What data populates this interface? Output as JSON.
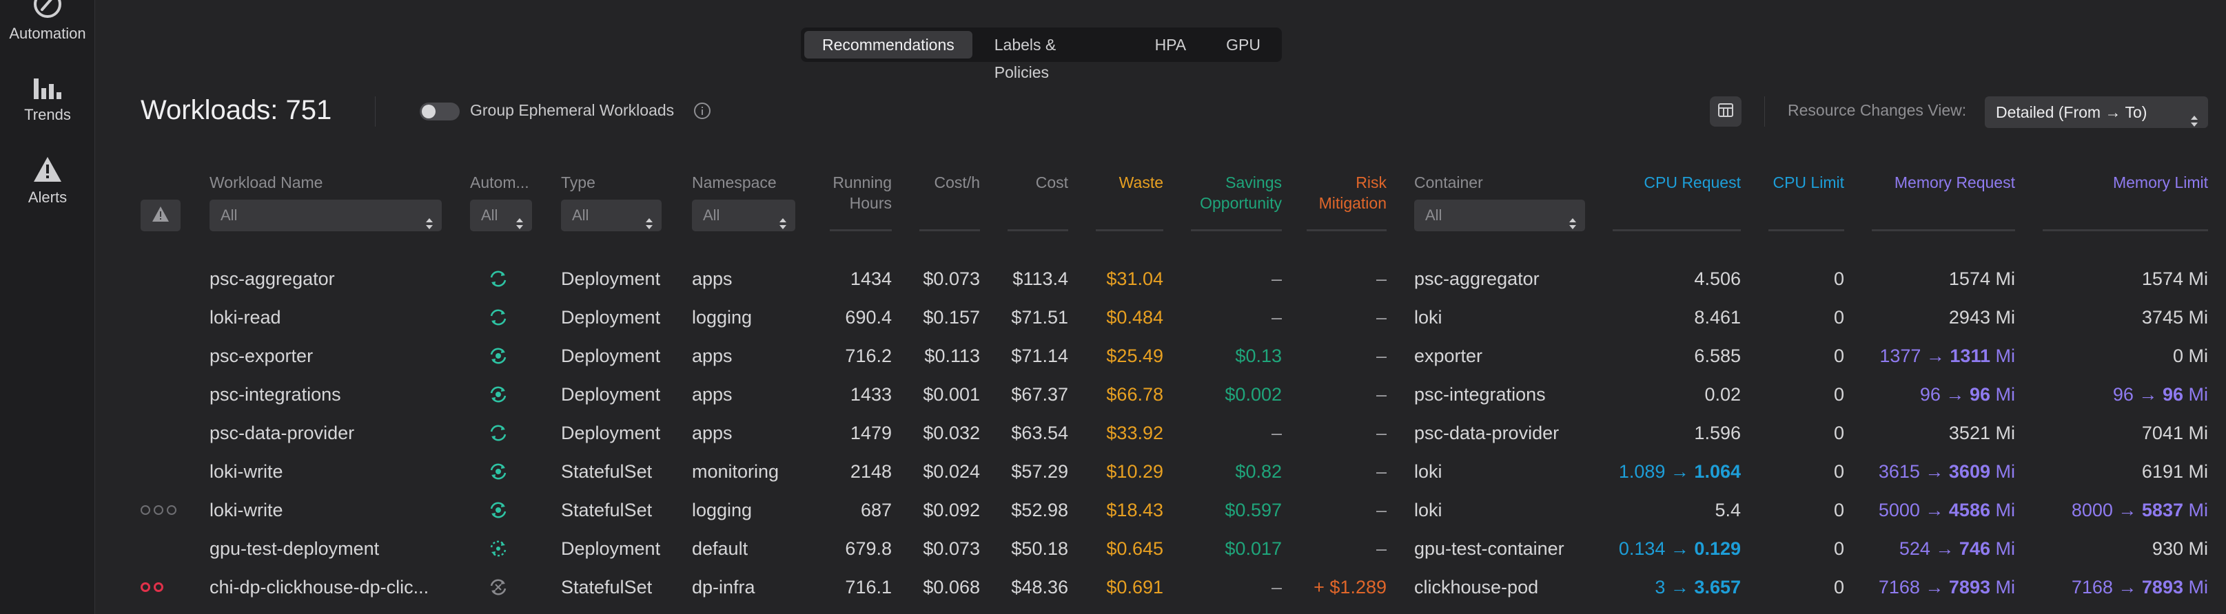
{
  "sidebar": {
    "items": [
      {
        "label": "Automation",
        "icon": "automation-icon"
      },
      {
        "label": "Trends",
        "icon": "trends-icon"
      },
      {
        "label": "Alerts",
        "icon": "alerts-icon"
      }
    ]
  },
  "tabs": [
    "Recommendations",
    "Labels & Policies",
    "HPA",
    "GPU"
  ],
  "active_tab": "Recommendations",
  "header": {
    "title": "Workloads: 751",
    "toggle_label": "Group Ephemeral Workloads",
    "resource_view_label": "Resource Changes View:",
    "resource_view_value": "Detailed (From → To)"
  },
  "columns": {
    "workload_name": "Workload Name",
    "automation": "Autom...",
    "type": "Type",
    "namespace": "Namespace",
    "running_hours": [
      "Running",
      "Hours"
    ],
    "cost_h": "Cost/h",
    "cost": "Cost",
    "waste": "Waste",
    "savings": [
      "Savings",
      "Opportunity"
    ],
    "risk": [
      "Risk",
      "Mitigation"
    ],
    "container": "Container",
    "cpu_request": "CPU Request",
    "cpu_limit": "CPU Limit",
    "memory_request": "Memory Request",
    "memory_limit": "Memory Limit"
  },
  "filters": {
    "workload_name": "All",
    "automation": "All",
    "type": "All",
    "namespace": "All",
    "container": "All"
  },
  "colors": {
    "waste": "#e8a021",
    "savings": "#1fa57b",
    "risk": "#e0662a",
    "cpu": "#1d9ed8",
    "memory": "#8f7bf0",
    "alert_dot": "#e0314a"
  },
  "rows": [
    {
      "name": "psc-aggregator",
      "auto_icon": "sync-icon",
      "type": "Deployment",
      "namespace": "apps",
      "hours": "1434",
      "cost_h": "$0.073",
      "cost": "$113.4",
      "waste": "$31.04",
      "savings": "–",
      "risk": "–",
      "container": "psc-aggregator",
      "cpu_req_from": "",
      "cpu_req": "4.506",
      "cpu_limit": "0",
      "mem_req_from": "",
      "mem_req": "1574",
      "mem_lim_from": "",
      "mem_lim": "1574",
      "unit": "Mi",
      "indicator": ""
    },
    {
      "name": "loki-read",
      "auto_icon": "sync-icon",
      "type": "Deployment",
      "namespace": "logging",
      "hours": "690.4",
      "cost_h": "$0.157",
      "cost": "$71.51",
      "waste": "$0.484",
      "savings": "–",
      "risk": "–",
      "container": "loki",
      "cpu_req_from": "",
      "cpu_req": "8.461",
      "cpu_limit": "0",
      "mem_req_from": "",
      "mem_req": "2943",
      "mem_lim_from": "",
      "mem_lim": "3745",
      "unit": "Mi",
      "indicator": ""
    },
    {
      "name": "psc-exporter",
      "auto_icon": "sync-gear-icon",
      "type": "Deployment",
      "namespace": "apps",
      "hours": "716.2",
      "cost_h": "$0.113",
      "cost": "$71.14",
      "waste": "$25.49",
      "savings": "$0.13",
      "risk": "–",
      "container": "exporter",
      "cpu_req_from": "",
      "cpu_req": "6.585",
      "cpu_limit": "0",
      "mem_req_from": "1377",
      "mem_req": "1311",
      "mem_lim_from": "",
      "mem_lim": "0",
      "unit": "Mi",
      "indicator": ""
    },
    {
      "name": "psc-integrations",
      "auto_icon": "sync-gear-icon",
      "type": "Deployment",
      "namespace": "apps",
      "hours": "1433",
      "cost_h": "$0.001",
      "cost": "$67.37",
      "waste": "$66.78",
      "savings": "$0.002",
      "risk": "–",
      "container": "psc-integrations",
      "cpu_req_from": "",
      "cpu_req": "0.02",
      "cpu_limit": "0",
      "mem_req_from": "96",
      "mem_req": "96",
      "mem_lim_from": "96",
      "mem_lim": "96",
      "unit": "Mi",
      "indicator": ""
    },
    {
      "name": "psc-data-provider",
      "auto_icon": "sync-icon",
      "type": "Deployment",
      "namespace": "apps",
      "hours": "1479",
      "cost_h": "$0.032",
      "cost": "$63.54",
      "waste": "$33.92",
      "savings": "–",
      "risk": "–",
      "container": "psc-data-provider",
      "cpu_req_from": "",
      "cpu_req": "1.596",
      "cpu_limit": "0",
      "mem_req_from": "",
      "mem_req": "3521",
      "mem_lim_from": "",
      "mem_lim": "7041",
      "unit": "Mi",
      "indicator": ""
    },
    {
      "name": "loki-write",
      "auto_icon": "sync-gear-icon",
      "type": "StatefulSet",
      "namespace": "monitoring",
      "hours": "2148",
      "cost_h": "$0.024",
      "cost": "$57.29",
      "waste": "$10.29",
      "savings": "$0.82",
      "risk": "–",
      "container": "loki",
      "cpu_req_from": "1.089",
      "cpu_req": "1.064",
      "cpu_limit": "0",
      "mem_req_from": "3615",
      "mem_req": "3609",
      "mem_lim_from": "",
      "mem_lim": "6191",
      "unit": "Mi",
      "indicator": ""
    },
    {
      "name": "loki-write",
      "auto_icon": "sync-gear-icon",
      "type": "StatefulSet",
      "namespace": "logging",
      "hours": "687",
      "cost_h": "$0.092",
      "cost": "$52.98",
      "waste": "$18.43",
      "savings": "$0.597",
      "risk": "–",
      "container": "loki",
      "cpu_req_from": "",
      "cpu_req": "5.4",
      "cpu_limit": "0",
      "mem_req_from": "5000",
      "mem_req": "4586",
      "mem_lim_from": "8000",
      "mem_lim": "5837",
      "unit": "Mi",
      "indicator": "three-grey"
    },
    {
      "name": "gpu-test-deployment",
      "auto_icon": "sync-dotted-icon",
      "type": "Deployment",
      "namespace": "default",
      "hours": "679.8",
      "cost_h": "$0.073",
      "cost": "$50.18",
      "waste": "$0.645",
      "savings": "$0.017",
      "risk": "–",
      "container": "gpu-test-container",
      "cpu_req_from": "0.134",
      "cpu_req": "0.129",
      "cpu_limit": "0",
      "mem_req_from": "524",
      "mem_req": "746",
      "mem_lim_from": "",
      "mem_lim": "930",
      "unit": "Mi",
      "indicator": ""
    },
    {
      "name": "chi-dp-clickhouse-dp-clic...",
      "auto_icon": "sync-disabled-icon",
      "type": "StatefulSet",
      "namespace": "dp-infra",
      "hours": "716.1",
      "cost_h": "$0.068",
      "cost": "$48.36",
      "waste": "$0.691",
      "savings": "–",
      "risk": "+ $1.289",
      "container": "clickhouse-pod",
      "cpu_req_from": "3",
      "cpu_req": "3.657",
      "cpu_limit": "0",
      "mem_req_from": "7168",
      "mem_req": "7893",
      "mem_lim_from": "7168",
      "mem_lim": "7893",
      "unit": "Mi",
      "indicator": "two-red"
    }
  ]
}
